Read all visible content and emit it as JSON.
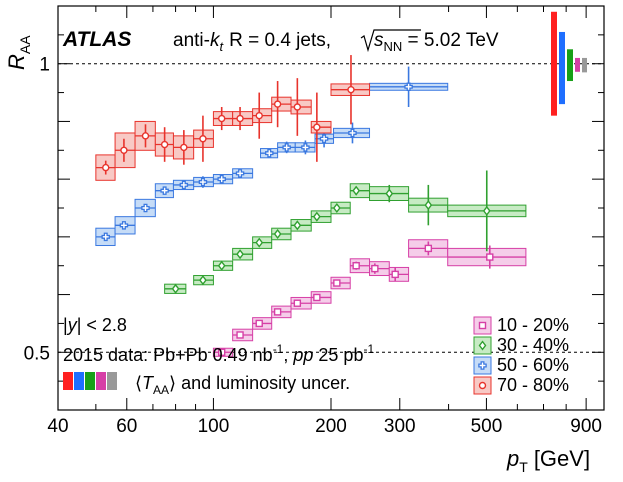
{
  "chart_data": {
    "type": "scatter",
    "experiment": "ATLAS",
    "header_parts": {
      "pre": "anti-",
      "k": "k",
      "k_sub": "t",
      "r": "R = 0.4 jets,",
      "s": "s",
      "s_sub": "NN",
      "energy": " = 5.02 TeV"
    },
    "ylabel": {
      "main": "R",
      "sub": "AA"
    },
    "xlabel": {
      "main": "p",
      "sub": "T",
      "unit": "[GeV]"
    },
    "x_scale": "log",
    "xlim": [
      40,
      1000
    ],
    "ylim": [
      0.4,
      1.1
    ],
    "ref_lines": [
      1.0,
      0.5
    ],
    "x_ticks": [
      40,
      60,
      100,
      200,
      300,
      500,
      900
    ],
    "x_tick_labels": [
      "40",
      "60",
      "100",
      "200",
      "300",
      "500",
      "900"
    ],
    "y_tick_labels": [
      {
        "value": 1.0,
        "label": "1"
      },
      {
        "value": 0.5,
        "label": "0.5"
      }
    ],
    "annotations": {
      "rapidity": {
        "pre": "|",
        "y": "y",
        "post": "| < 2.8"
      },
      "data": {
        "a": "2015 data: Pb+Pb 0.49 nb",
        "a_sup": "-1",
        "b": ", ",
        "pp": "pp",
        "c": " 25 pb",
        "c_sup": "-1"
      },
      "unc": {
        "pre": "⟨",
        "t": "T",
        "t_sub": "AA",
        "post": "⟩ and luminosity uncer."
      }
    },
    "series": [
      {
        "name": "10 - 20%",
        "color": "#d63fa6",
        "fill": "#f5cde9",
        "marker": "square",
        "points": [
          {
            "x": 105,
            "y": 0.5,
            "lo": 100,
            "hi": 112,
            "stat": 0.003,
            "sys": 0.007
          },
          {
            "x": 117,
            "y": 0.53,
            "lo": 112,
            "hi": 126,
            "stat": 0.003,
            "sys": 0.01
          },
          {
            "x": 131,
            "y": 0.55,
            "lo": 126,
            "hi": 141,
            "stat": 0.003,
            "sys": 0.01
          },
          {
            "x": 146,
            "y": 0.57,
            "lo": 141,
            "hi": 158,
            "stat": 0.003,
            "sys": 0.01
          },
          {
            "x": 164,
            "y": 0.585,
            "lo": 158,
            "hi": 178,
            "stat": 0.004,
            "sys": 0.01
          },
          {
            "x": 184,
            "y": 0.595,
            "lo": 178,
            "hi": 200,
            "stat": 0.004,
            "sys": 0.01
          },
          {
            "x": 207,
            "y": 0.62,
            "lo": 200,
            "hi": 224,
            "stat": 0.005,
            "sys": 0.01
          },
          {
            "x": 232,
            "y": 0.65,
            "lo": 224,
            "hi": 251,
            "stat": 0.007,
            "sys": 0.012
          },
          {
            "x": 259,
            "y": 0.645,
            "lo": 251,
            "hi": 282,
            "stat": 0.009,
            "sys": 0.012
          },
          {
            "x": 292,
            "y": 0.635,
            "lo": 282,
            "hi": 316,
            "stat": 0.012,
            "sys": 0.012
          },
          {
            "x": 355,
            "y": 0.68,
            "lo": 316,
            "hi": 398,
            "stat": 0.012,
            "sys": 0.015
          },
          {
            "x": 510,
            "y": 0.665,
            "lo": 398,
            "hi": 631,
            "stat": 0.02,
            "sys": 0.015
          }
        ]
      },
      {
        "name": "30 - 40%",
        "color": "#30a030",
        "fill": "#c7ebc4",
        "marker": "diamond",
        "points": [
          {
            "x": 80,
            "y": 0.61,
            "lo": 75,
            "hi": 85,
            "stat": 0.003,
            "sys": 0.008
          },
          {
            "x": 94,
            "y": 0.625,
            "lo": 89,
            "hi": 100,
            "stat": 0.003,
            "sys": 0.008
          },
          {
            "x": 105,
            "y": 0.65,
            "lo": 100,
            "hi": 112,
            "stat": 0.003,
            "sys": 0.008
          },
          {
            "x": 117,
            "y": 0.67,
            "lo": 112,
            "hi": 126,
            "stat": 0.003,
            "sys": 0.01
          },
          {
            "x": 131,
            "y": 0.69,
            "lo": 126,
            "hi": 141,
            "stat": 0.003,
            "sys": 0.01
          },
          {
            "x": 146,
            "y": 0.705,
            "lo": 141,
            "hi": 158,
            "stat": 0.003,
            "sys": 0.01
          },
          {
            "x": 164,
            "y": 0.72,
            "lo": 158,
            "hi": 178,
            "stat": 0.004,
            "sys": 0.01
          },
          {
            "x": 184,
            "y": 0.735,
            "lo": 178,
            "hi": 200,
            "stat": 0.004,
            "sys": 0.01
          },
          {
            "x": 207,
            "y": 0.75,
            "lo": 200,
            "hi": 224,
            "stat": 0.005,
            "sys": 0.01
          },
          {
            "x": 232,
            "y": 0.78,
            "lo": 224,
            "hi": 251,
            "stat": 0.007,
            "sys": 0.012
          },
          {
            "x": 282,
            "y": 0.775,
            "lo": 251,
            "hi": 316,
            "stat": 0.015,
            "sys": 0.012
          },
          {
            "x": 355,
            "y": 0.755,
            "lo": 316,
            "hi": 398,
            "stat": 0.035,
            "sys": 0.012
          },
          {
            "x": 501,
            "y": 0.745,
            "lo": 398,
            "hi": 631,
            "stat": 0.07,
            "sys": 0.01
          }
        ]
      },
      {
        "name": "50 - 60%",
        "color": "#3a78e0",
        "fill": "#c6dcf7",
        "marker": "cross",
        "points": [
          {
            "x": 53,
            "y": 0.7,
            "lo": 50,
            "hi": 56,
            "stat": 0.003,
            "sys": 0.015
          },
          {
            "x": 59,
            "y": 0.72,
            "lo": 56,
            "hi": 63,
            "stat": 0.003,
            "sys": 0.015
          },
          {
            "x": 67,
            "y": 0.75,
            "lo": 63,
            "hi": 71,
            "stat": 0.003,
            "sys": 0.015
          },
          {
            "x": 75,
            "y": 0.78,
            "lo": 71,
            "hi": 79,
            "stat": 0.003,
            "sys": 0.012
          },
          {
            "x": 84,
            "y": 0.79,
            "lo": 79,
            "hi": 89,
            "stat": 0.004,
            "sys": 0.008
          },
          {
            "x": 94,
            "y": 0.795,
            "lo": 89,
            "hi": 100,
            "stat": 0.01,
            "sys": 0.008
          },
          {
            "x": 105,
            "y": 0.8,
            "lo": 100,
            "hi": 112,
            "stat": 0.004,
            "sys": 0.008
          },
          {
            "x": 117,
            "y": 0.81,
            "lo": 112,
            "hi": 126,
            "stat": 0.004,
            "sys": 0.008
          },
          {
            "x": 139,
            "y": 0.845,
            "lo": 132,
            "hi": 146,
            "stat": 0.005,
            "sys": 0.008
          },
          {
            "x": 154,
            "y": 0.855,
            "lo": 146,
            "hi": 162,
            "stat": 0.01,
            "sys": 0.008
          },
          {
            "x": 172,
            "y": 0.855,
            "lo": 162,
            "hi": 182,
            "stat": 0.012,
            "sys": 0.008
          },
          {
            "x": 192,
            "y": 0.87,
            "lo": 182,
            "hi": 203,
            "stat": 0.015,
            "sys": 0.008
          },
          {
            "x": 227,
            "y": 0.88,
            "lo": 203,
            "hi": 251,
            "stat": 0.018,
            "sys": 0.008
          },
          {
            "x": 316,
            "y": 0.96,
            "lo": 251,
            "hi": 398,
            "stat": 0.035,
            "sys": 0.006
          }
        ]
      },
      {
        "name": "70 - 80%",
        "color": "#e8332c",
        "fill": "#f8c9c5",
        "marker": "circle",
        "points": [
          {
            "x": 53,
            "y": 0.82,
            "lo": 50,
            "hi": 56,
            "stat": 0.012,
            "sys": 0.022
          },
          {
            "x": 59,
            "y": 0.85,
            "lo": 56,
            "hi": 63,
            "stat": 0.02,
            "sys": 0.03
          },
          {
            "x": 67,
            "y": 0.875,
            "lo": 63,
            "hi": 71,
            "stat": 0.02,
            "sys": 0.025
          },
          {
            "x": 75,
            "y": 0.86,
            "lo": 71,
            "hi": 79,
            "stat": 0.03,
            "sys": 0.02
          },
          {
            "x": 84,
            "y": 0.855,
            "lo": 79,
            "hi": 89,
            "stat": 0.03,
            "sys": 0.02
          },
          {
            "x": 94,
            "y": 0.87,
            "lo": 89,
            "hi": 100,
            "stat": 0.04,
            "sys": 0.015
          },
          {
            "x": 105,
            "y": 0.905,
            "lo": 100,
            "hi": 112,
            "stat": 0.02,
            "sys": 0.012
          },
          {
            "x": 117,
            "y": 0.905,
            "lo": 112,
            "hi": 126,
            "stat": 0.02,
            "sys": 0.012
          },
          {
            "x": 131,
            "y": 0.91,
            "lo": 126,
            "hi": 141,
            "stat": 0.04,
            "sys": 0.012
          },
          {
            "x": 146,
            "y": 0.93,
            "lo": 141,
            "hi": 158,
            "stat": 0.04,
            "sys": 0.012
          },
          {
            "x": 164,
            "y": 0.925,
            "lo": 158,
            "hi": 178,
            "stat": 0.05,
            "sys": 0.012
          },
          {
            "x": 184,
            "y": 0.89,
            "lo": 178,
            "hi": 200,
            "stat": 0.06,
            "sys": 0.01
          },
          {
            "x": 225,
            "y": 0.955,
            "lo": 200,
            "hi": 251,
            "stat": 0.06,
            "sys": 0.01
          }
        ]
      }
    ],
    "uncertainty_bars": [
      {
        "color": "#ff2020",
        "lo": 0.91,
        "hi": 1.09
      },
      {
        "color": "#1f6fff",
        "lo": 0.93,
        "hi": 1.055
      },
      {
        "color": "#18a018",
        "lo": 0.97,
        "hi": 1.025
      },
      {
        "color": "#d63fa6",
        "lo": 0.986,
        "hi": 1.01
      },
      {
        "color": "#999999",
        "lo": 0.985,
        "hi": 1.01
      }
    ]
  }
}
